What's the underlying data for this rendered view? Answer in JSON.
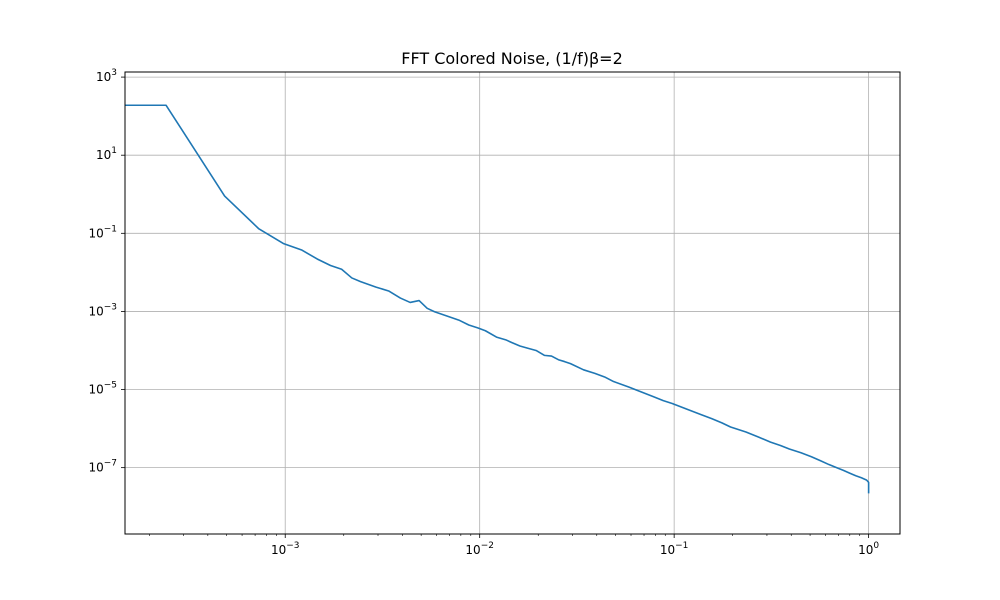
{
  "chart_data": {
    "type": "line",
    "title": "FFT Colored Noise, (1/f)β=2",
    "xlabel": "",
    "ylabel": "",
    "xscale": "log",
    "yscale": "log",
    "xlim": [
      0.00015,
      1.45
    ],
    "ylim": [
      2e-09,
      1350.0
    ],
    "grid": true,
    "x_ticks": [
      {
        "value": 0.001,
        "base": "10",
        "exp": "−3"
      },
      {
        "value": 0.01,
        "base": "10",
        "exp": "−2"
      },
      {
        "value": 0.1,
        "base": "10",
        "exp": "−1"
      },
      {
        "value": 1,
        "base": "10",
        "exp": "0"
      }
    ],
    "y_ticks": [
      {
        "value": 1e-07,
        "base": "10",
        "exp": "−7"
      },
      {
        "value": 1e-05,
        "base": "10",
        "exp": "−5"
      },
      {
        "value": 0.001,
        "base": "10",
        "exp": "−3"
      },
      {
        "value": 0.1,
        "base": "10",
        "exp": "−1"
      },
      {
        "value": 10,
        "base": "10",
        "exp": "1"
      },
      {
        "value": 1000,
        "base": "10",
        "exp": "3"
      }
    ],
    "series": [
      {
        "color": "#1f77b4",
        "x": [
          0.00015,
          0.000244,
          0.000488,
          0.000732,
          0.000977,
          0.00122,
          0.00146,
          0.00171,
          0.00195,
          0.0022,
          0.00244,
          0.00293,
          0.00342,
          0.00391,
          0.00439,
          0.00488,
          0.00537,
          0.00586,
          0.00684,
          0.00781,
          0.00879,
          0.00977,
          0.0107,
          0.0122,
          0.0137,
          0.0146,
          0.0161,
          0.0176,
          0.0195,
          0.0215,
          0.0234,
          0.0254,
          0.0273,
          0.0293,
          0.0342,
          0.0391,
          0.0439,
          0.0488,
          0.0586,
          0.0684,
          0.0781,
          0.0879,
          0.0977,
          0.117,
          0.137,
          0.156,
          0.176,
          0.195,
          0.234,
          0.273,
          0.313,
          0.352,
          0.391,
          0.449,
          0.508,
          0.566,
          0.625,
          0.684,
          0.742,
          0.801,
          0.859,
          0.918,
          0.977,
          1.0,
          1.0
        ],
        "y": [
          190,
          190,
          0.9,
          0.13,
          0.055,
          0.037,
          0.022,
          0.015,
          0.012,
          0.0072,
          0.0058,
          0.0042,
          0.0033,
          0.0022,
          0.0017,
          0.0019,
          0.0012,
          0.00098,
          0.00075,
          0.0006,
          0.00045,
          0.00038,
          0.00032,
          0.00022,
          0.000185,
          0.00016,
          0.00013,
          0.000115,
          0.0001,
          7.5e-05,
          7.2e-05,
          5.8e-05,
          5.2e-05,
          4.6e-05,
          3.2e-05,
          2.6e-05,
          2.1e-05,
          1.6e-05,
          1.15e-05,
          8.5e-06,
          6.6e-06,
          5.2e-06,
          4.4e-06,
          3.1e-06,
          2.3e-06,
          1.8e-06,
          1.4e-06,
          1.1e-06,
          8.2e-07,
          6e-07,
          4.5e-07,
          3.7e-07,
          3e-07,
          2.4e-07,
          1.9e-07,
          1.5e-07,
          1.2e-07,
          1e-07,
          8.5e-08,
          7.2e-08,
          6.2e-08,
          5.5e-08,
          4.8e-08,
          4.2e-08,
          2.2e-08
        ]
      }
    ]
  }
}
